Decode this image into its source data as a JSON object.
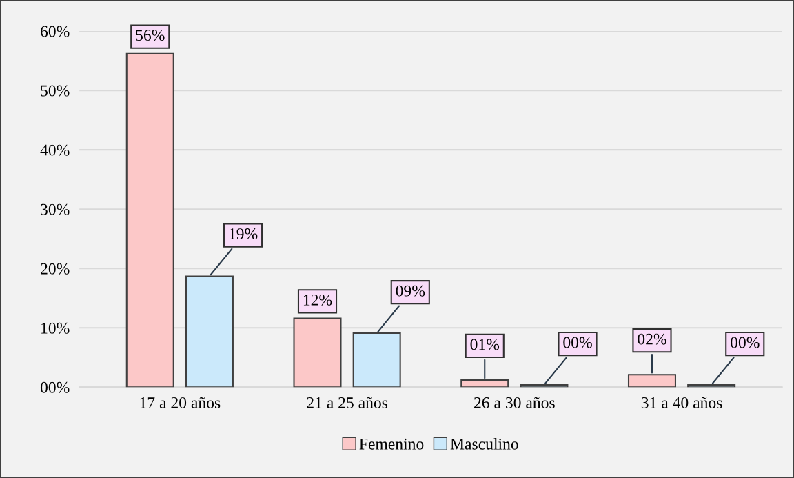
{
  "chart_data": {
    "type": "bar",
    "categories": [
      "17 a 20 años",
      "21 a 25 años",
      "26 a 30 años",
      "31 a 40 años"
    ],
    "series": [
      {
        "name": "Femenino",
        "color": "#fcc8c8",
        "values": [
          56.2,
          11.6,
          1.2,
          2.1
        ],
        "value_labels": [
          "56%",
          "12%",
          "01%",
          "02%"
        ]
      },
      {
        "name": "Masculino",
        "color": "#cbe9fb",
        "values": [
          18.7,
          9.1,
          0.4,
          0.4
        ],
        "value_labels": [
          "19%",
          "09%",
          "00%",
          "00%"
        ]
      }
    ],
    "ylim": [
      0,
      60
    ],
    "yticks": [
      {
        "value": 0,
        "label": "00%"
      },
      {
        "value": 10,
        "label": "10%"
      },
      {
        "value": 20,
        "label": "20%"
      },
      {
        "value": 30,
        "label": "30%"
      },
      {
        "value": 40,
        "label": "40%"
      },
      {
        "value": 50,
        "label": "50%"
      },
      {
        "value": 60,
        "label": "60%"
      }
    ],
    "grid": "y",
    "legend": "bottom"
  }
}
